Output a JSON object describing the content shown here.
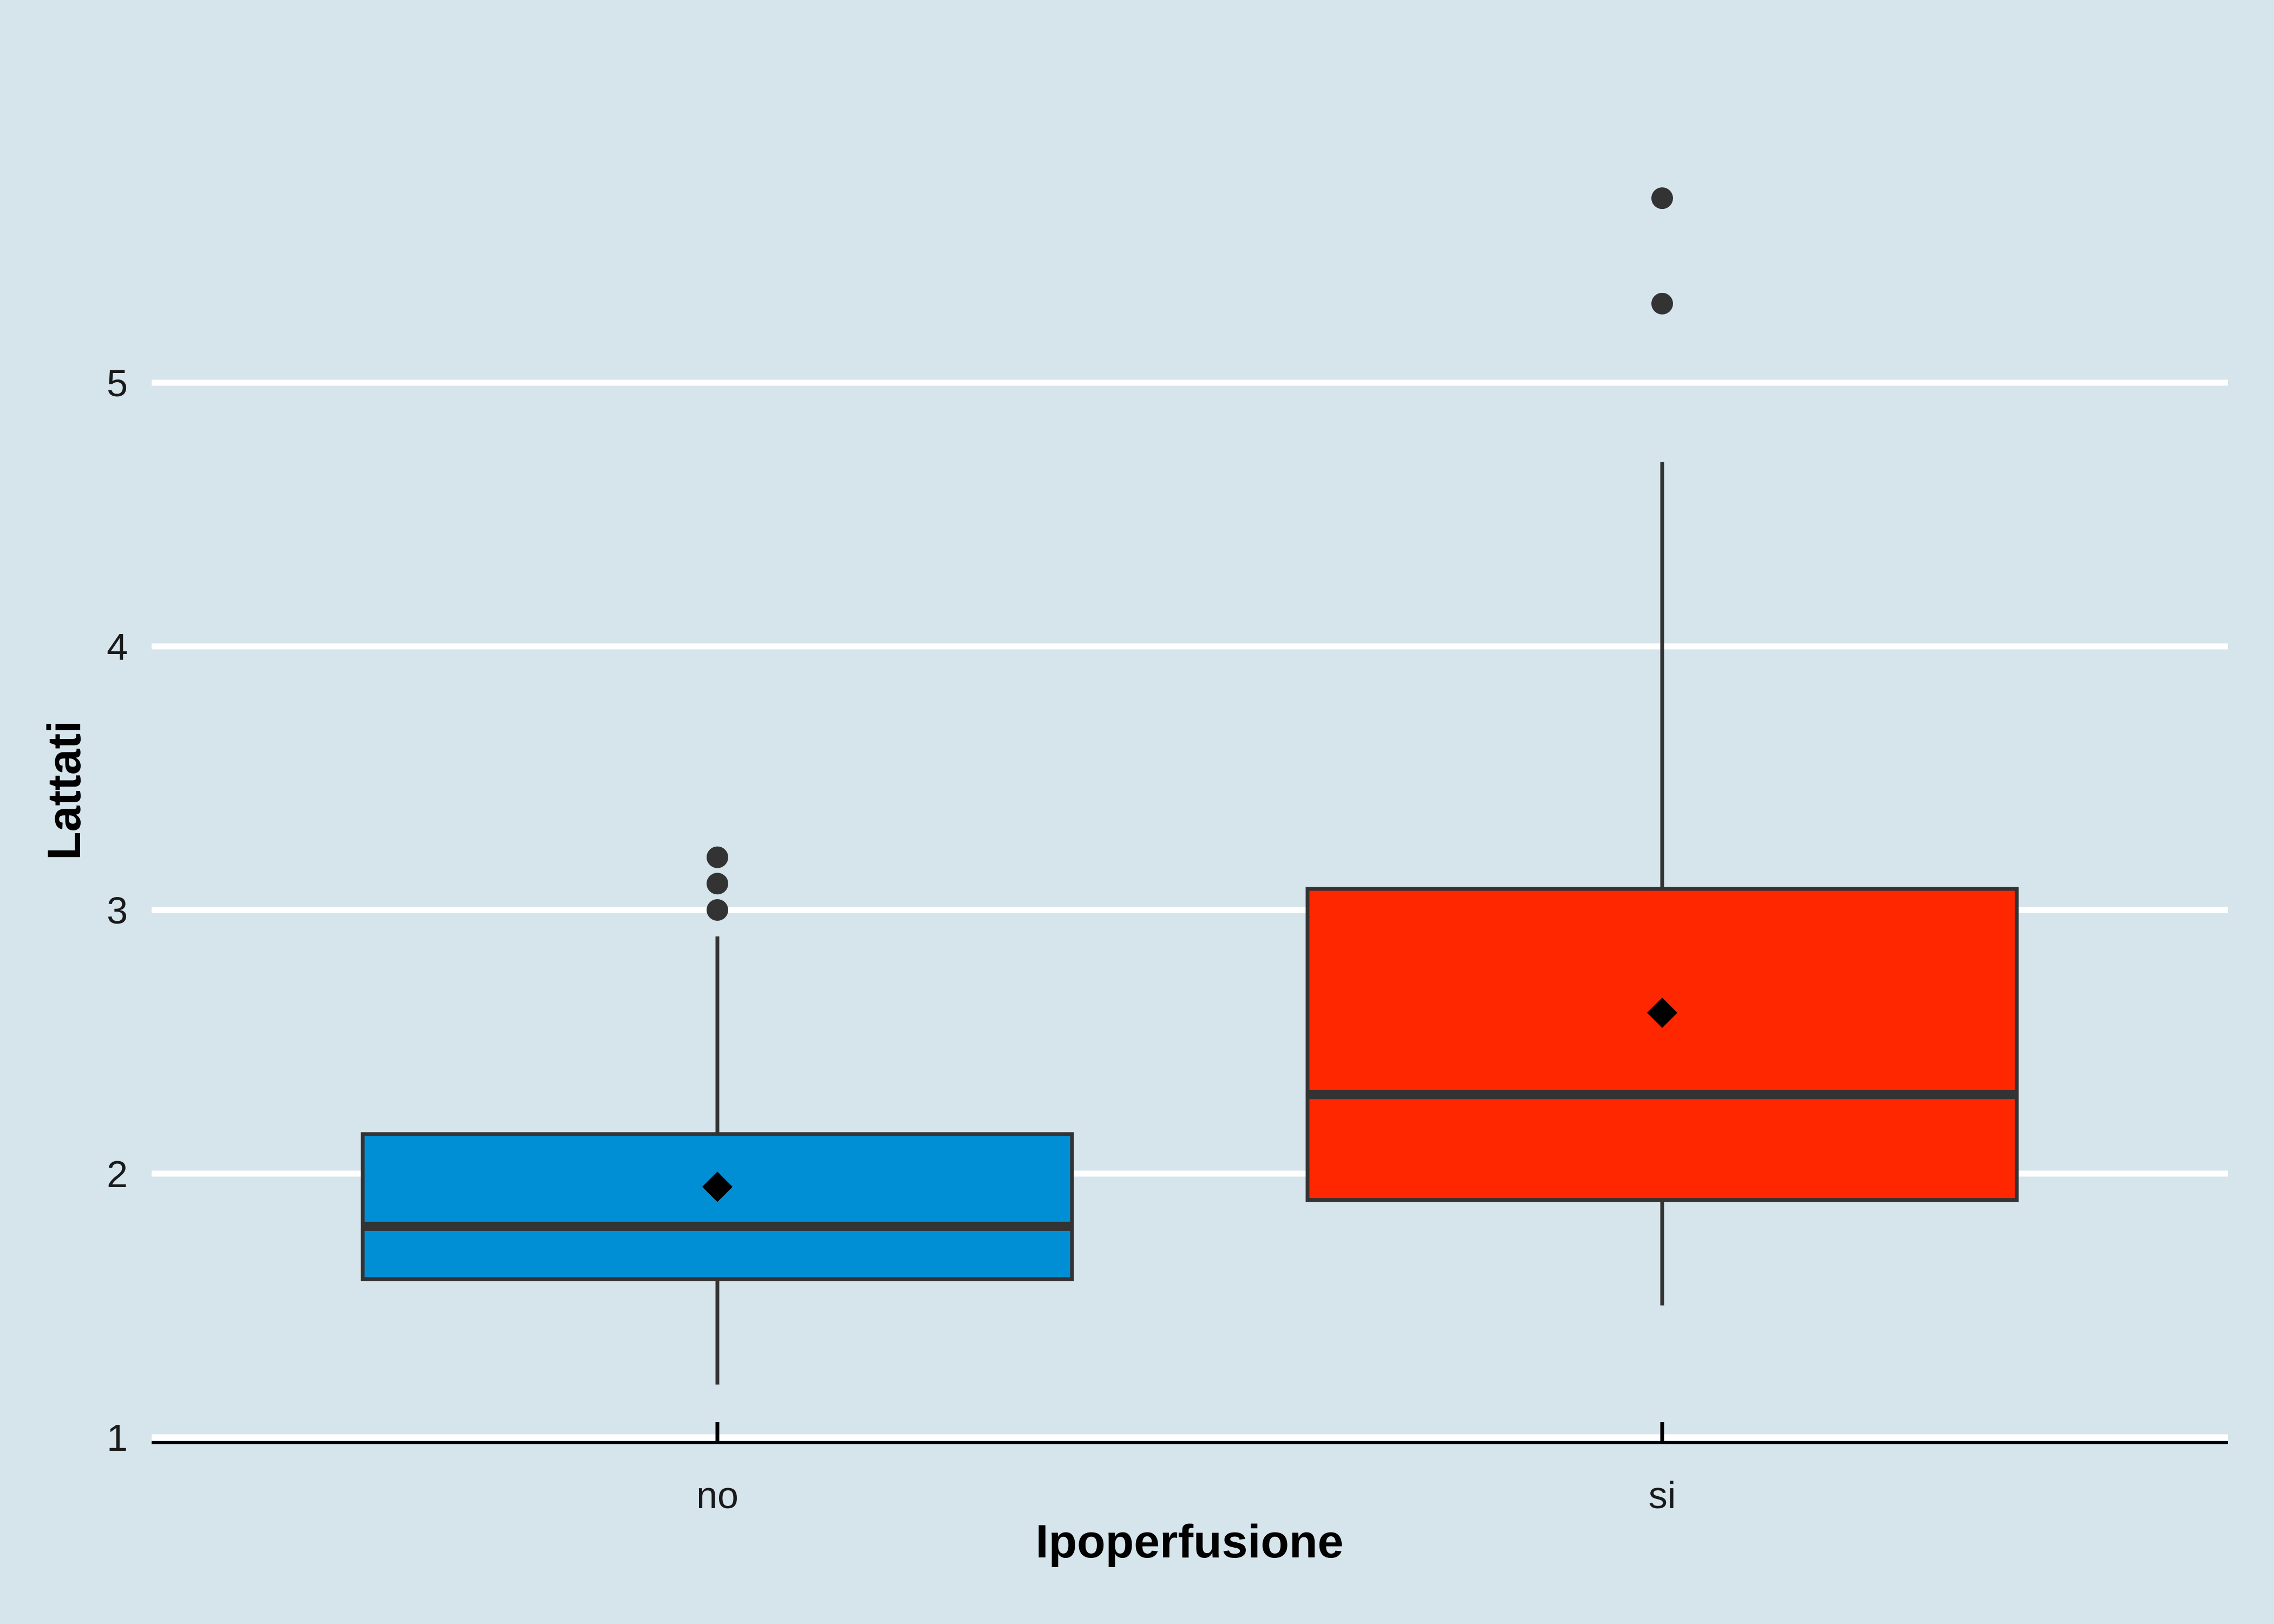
{
  "chart_data": {
    "type": "boxplot",
    "xlabel": "Ipoperfusione",
    "ylabel": "Lattati",
    "ylim": [
      1,
      5.8
    ],
    "yticks": [
      "1",
      "2",
      "3",
      "4",
      "5"
    ],
    "grid": "horizontal major lines",
    "legend": "none",
    "categories": [
      "no",
      "si"
    ],
    "series": [
      {
        "category": "no",
        "color": "#008fd5",
        "whisker_low": 1.2,
        "q1": 1.6,
        "median": 1.8,
        "q3": 2.15,
        "whisker_high": 2.9,
        "mean": 1.95,
        "outliers": [
          3.0,
          3.1,
          3.2
        ]
      },
      {
        "category": "si",
        "color": "#ff2700",
        "whisker_low": 1.5,
        "q1": 1.9,
        "median": 2.3,
        "q3": 3.08,
        "whisker_high": 4.7,
        "mean": 2.61,
        "outliers": [
          5.3,
          5.7
        ]
      }
    ]
  },
  "colors": {
    "background": "#d6e4eb",
    "grid": "#ffffff",
    "outline": "#333333",
    "mean_marker": "#000000"
  }
}
